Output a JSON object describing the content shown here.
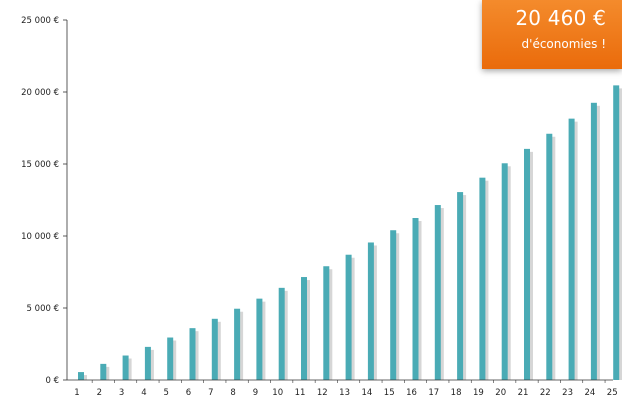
{
  "chart_data": {
    "type": "bar",
    "categories": [
      "1",
      "2",
      "3",
      "4",
      "5",
      "6",
      "7",
      "8",
      "9",
      "10",
      "11",
      "12",
      "13",
      "14",
      "15",
      "16",
      "17",
      "18",
      "19",
      "20",
      "21",
      "22",
      "23",
      "24",
      "25"
    ],
    "values": [
      550,
      1120,
      1700,
      2300,
      2950,
      3600,
      4250,
      4950,
      5650,
      6400,
      7150,
      7900,
      8700,
      9550,
      10400,
      11250,
      12150,
      13050,
      14050,
      15050,
      16050,
      17100,
      18150,
      19250,
      20460
    ],
    "ylim": [
      0,
      25000
    ],
    "yticks": [
      0,
      5000,
      10000,
      15000,
      20000,
      25000
    ],
    "ytick_labels": [
      "0 €",
      "5 000 €",
      "10 000 €",
      "15 000 €",
      "20 000 €",
      "25 000 €"
    ],
    "bar_color": "#4aabb5",
    "shadow_color": "#d6d6d6",
    "grid": false
  },
  "callout": {
    "amount": "20 460 €",
    "caption": "d'économies !",
    "color": "#ee7517"
  }
}
